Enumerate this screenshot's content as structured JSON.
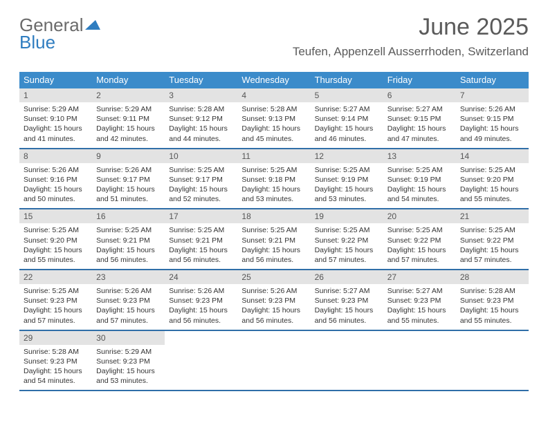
{
  "logo": {
    "line1": "General",
    "line2": "Blue"
  },
  "header": {
    "title": "June 2025",
    "subtitle": "Teufen, Appenzell Ausserrhoden, Switzerland"
  },
  "colors": {
    "header_bg": "#3b8bca",
    "header_text": "#ffffff",
    "week_border": "#2f6ea8",
    "daynum_bg": "#e3e3e3",
    "logo_gray": "#6a6a6a",
    "logo_blue": "#2f7dc0"
  },
  "weekday_labels": [
    "Sunday",
    "Monday",
    "Tuesday",
    "Wednesday",
    "Thursday",
    "Friday",
    "Saturday"
  ],
  "calendar": {
    "type": "table",
    "columns": 7,
    "rows": 5,
    "month_start_weekday": 0,
    "days_in_month": 30,
    "days": [
      {
        "n": 1,
        "sunrise": "5:29 AM",
        "sunset": "9:10 PM",
        "daylight": "15 hours and 41 minutes."
      },
      {
        "n": 2,
        "sunrise": "5:29 AM",
        "sunset": "9:11 PM",
        "daylight": "15 hours and 42 minutes."
      },
      {
        "n": 3,
        "sunrise": "5:28 AM",
        "sunset": "9:12 PM",
        "daylight": "15 hours and 44 minutes."
      },
      {
        "n": 4,
        "sunrise": "5:28 AM",
        "sunset": "9:13 PM",
        "daylight": "15 hours and 45 minutes."
      },
      {
        "n": 5,
        "sunrise": "5:27 AM",
        "sunset": "9:14 PM",
        "daylight": "15 hours and 46 minutes."
      },
      {
        "n": 6,
        "sunrise": "5:27 AM",
        "sunset": "9:15 PM",
        "daylight": "15 hours and 47 minutes."
      },
      {
        "n": 7,
        "sunrise": "5:26 AM",
        "sunset": "9:15 PM",
        "daylight": "15 hours and 49 minutes."
      },
      {
        "n": 8,
        "sunrise": "5:26 AM",
        "sunset": "9:16 PM",
        "daylight": "15 hours and 50 minutes."
      },
      {
        "n": 9,
        "sunrise": "5:26 AM",
        "sunset": "9:17 PM",
        "daylight": "15 hours and 51 minutes."
      },
      {
        "n": 10,
        "sunrise": "5:25 AM",
        "sunset": "9:17 PM",
        "daylight": "15 hours and 52 minutes."
      },
      {
        "n": 11,
        "sunrise": "5:25 AM",
        "sunset": "9:18 PM",
        "daylight": "15 hours and 53 minutes."
      },
      {
        "n": 12,
        "sunrise": "5:25 AM",
        "sunset": "9:19 PM",
        "daylight": "15 hours and 53 minutes."
      },
      {
        "n": 13,
        "sunrise": "5:25 AM",
        "sunset": "9:19 PM",
        "daylight": "15 hours and 54 minutes."
      },
      {
        "n": 14,
        "sunrise": "5:25 AM",
        "sunset": "9:20 PM",
        "daylight": "15 hours and 55 minutes."
      },
      {
        "n": 15,
        "sunrise": "5:25 AM",
        "sunset": "9:20 PM",
        "daylight": "15 hours and 55 minutes."
      },
      {
        "n": 16,
        "sunrise": "5:25 AM",
        "sunset": "9:21 PM",
        "daylight": "15 hours and 56 minutes."
      },
      {
        "n": 17,
        "sunrise": "5:25 AM",
        "sunset": "9:21 PM",
        "daylight": "15 hours and 56 minutes."
      },
      {
        "n": 18,
        "sunrise": "5:25 AM",
        "sunset": "9:21 PM",
        "daylight": "15 hours and 56 minutes."
      },
      {
        "n": 19,
        "sunrise": "5:25 AM",
        "sunset": "9:22 PM",
        "daylight": "15 hours and 57 minutes."
      },
      {
        "n": 20,
        "sunrise": "5:25 AM",
        "sunset": "9:22 PM",
        "daylight": "15 hours and 57 minutes."
      },
      {
        "n": 21,
        "sunrise": "5:25 AM",
        "sunset": "9:22 PM",
        "daylight": "15 hours and 57 minutes."
      },
      {
        "n": 22,
        "sunrise": "5:25 AM",
        "sunset": "9:23 PM",
        "daylight": "15 hours and 57 minutes."
      },
      {
        "n": 23,
        "sunrise": "5:26 AM",
        "sunset": "9:23 PM",
        "daylight": "15 hours and 57 minutes."
      },
      {
        "n": 24,
        "sunrise": "5:26 AM",
        "sunset": "9:23 PM",
        "daylight": "15 hours and 56 minutes."
      },
      {
        "n": 25,
        "sunrise": "5:26 AM",
        "sunset": "9:23 PM",
        "daylight": "15 hours and 56 minutes."
      },
      {
        "n": 26,
        "sunrise": "5:27 AM",
        "sunset": "9:23 PM",
        "daylight": "15 hours and 56 minutes."
      },
      {
        "n": 27,
        "sunrise": "5:27 AM",
        "sunset": "9:23 PM",
        "daylight": "15 hours and 55 minutes."
      },
      {
        "n": 28,
        "sunrise": "5:28 AM",
        "sunset": "9:23 PM",
        "daylight": "15 hours and 55 minutes."
      },
      {
        "n": 29,
        "sunrise": "5:28 AM",
        "sunset": "9:23 PM",
        "daylight": "15 hours and 54 minutes."
      },
      {
        "n": 30,
        "sunrise": "5:29 AM",
        "sunset": "9:23 PM",
        "daylight": "15 hours and 53 minutes."
      }
    ],
    "labels": {
      "sunrise": "Sunrise:",
      "sunset": "Sunset:",
      "daylight": "Daylight:"
    }
  }
}
